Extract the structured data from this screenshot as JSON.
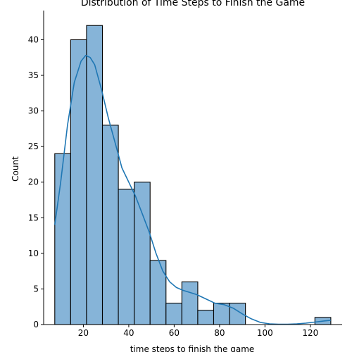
{
  "chart_data": {
    "type": "bar",
    "title": "Distribution of Time Steps to Finish the Game",
    "xlabel": "time steps to finish the game",
    "ylabel": "Count",
    "bins": [
      {
        "x0": 7.4,
        "x1": 14.4,
        "count": 24
      },
      {
        "x0": 14.4,
        "x1": 21.4,
        "count": 40
      },
      {
        "x0": 21.4,
        "x1": 28.4,
        "count": 42
      },
      {
        "x0": 28.4,
        "x1": 35.4,
        "count": 28
      },
      {
        "x0": 35.4,
        "x1": 42.4,
        "count": 19
      },
      {
        "x0": 42.4,
        "x1": 49.4,
        "count": 20
      },
      {
        "x0": 49.4,
        "x1": 56.4,
        "count": 9
      },
      {
        "x0": 56.4,
        "x1": 63.4,
        "count": 3
      },
      {
        "x0": 63.4,
        "x1": 70.4,
        "count": 6
      },
      {
        "x0": 70.4,
        "x1": 77.4,
        "count": 2
      },
      {
        "x0": 77.4,
        "x1": 84.4,
        "count": 3
      },
      {
        "x0": 84.4,
        "x1": 91.4,
        "count": 3
      },
      {
        "x0": 122.0,
        "x1": 129.0,
        "count": 1
      }
    ],
    "kde": {
      "x": [
        7.4,
        10,
        13,
        16,
        19,
        21,
        23,
        25,
        28,
        31,
        34,
        37,
        40,
        43,
        46,
        49,
        52,
        55,
        58,
        61,
        64,
        67,
        70,
        74,
        78,
        82,
        86,
        90,
        94,
        98,
        102,
        106,
        110,
        114,
        118,
        122,
        126,
        129
      ],
      "y": [
        14,
        20,
        28,
        34,
        37,
        37.8,
        37.5,
        36.5,
        33,
        29,
        25.5,
        22,
        20,
        18,
        15.5,
        13,
        10,
        7.5,
        6,
        5.2,
        4.8,
        4.5,
        4.2,
        3.6,
        3,
        2.8,
        2.3,
        1.5,
        0.8,
        0.3,
        0.1,
        0.05,
        0.05,
        0.1,
        0.2,
        0.35,
        0.5,
        0.6
      ]
    },
    "xlim": [
      2.5,
      134.0
    ],
    "ylim": [
      0,
      44.1
    ],
    "xticks": [
      20,
      40,
      60,
      80,
      100,
      120
    ],
    "yticks": [
      0,
      5,
      10,
      15,
      20,
      25,
      30,
      35,
      40
    ],
    "grid": false,
    "legend": "none",
    "colors": {
      "bar_fill": "#86b4d8",
      "bar_edge": "#000000",
      "kde_line": "#1f77b4",
      "axis": "#000000"
    }
  }
}
